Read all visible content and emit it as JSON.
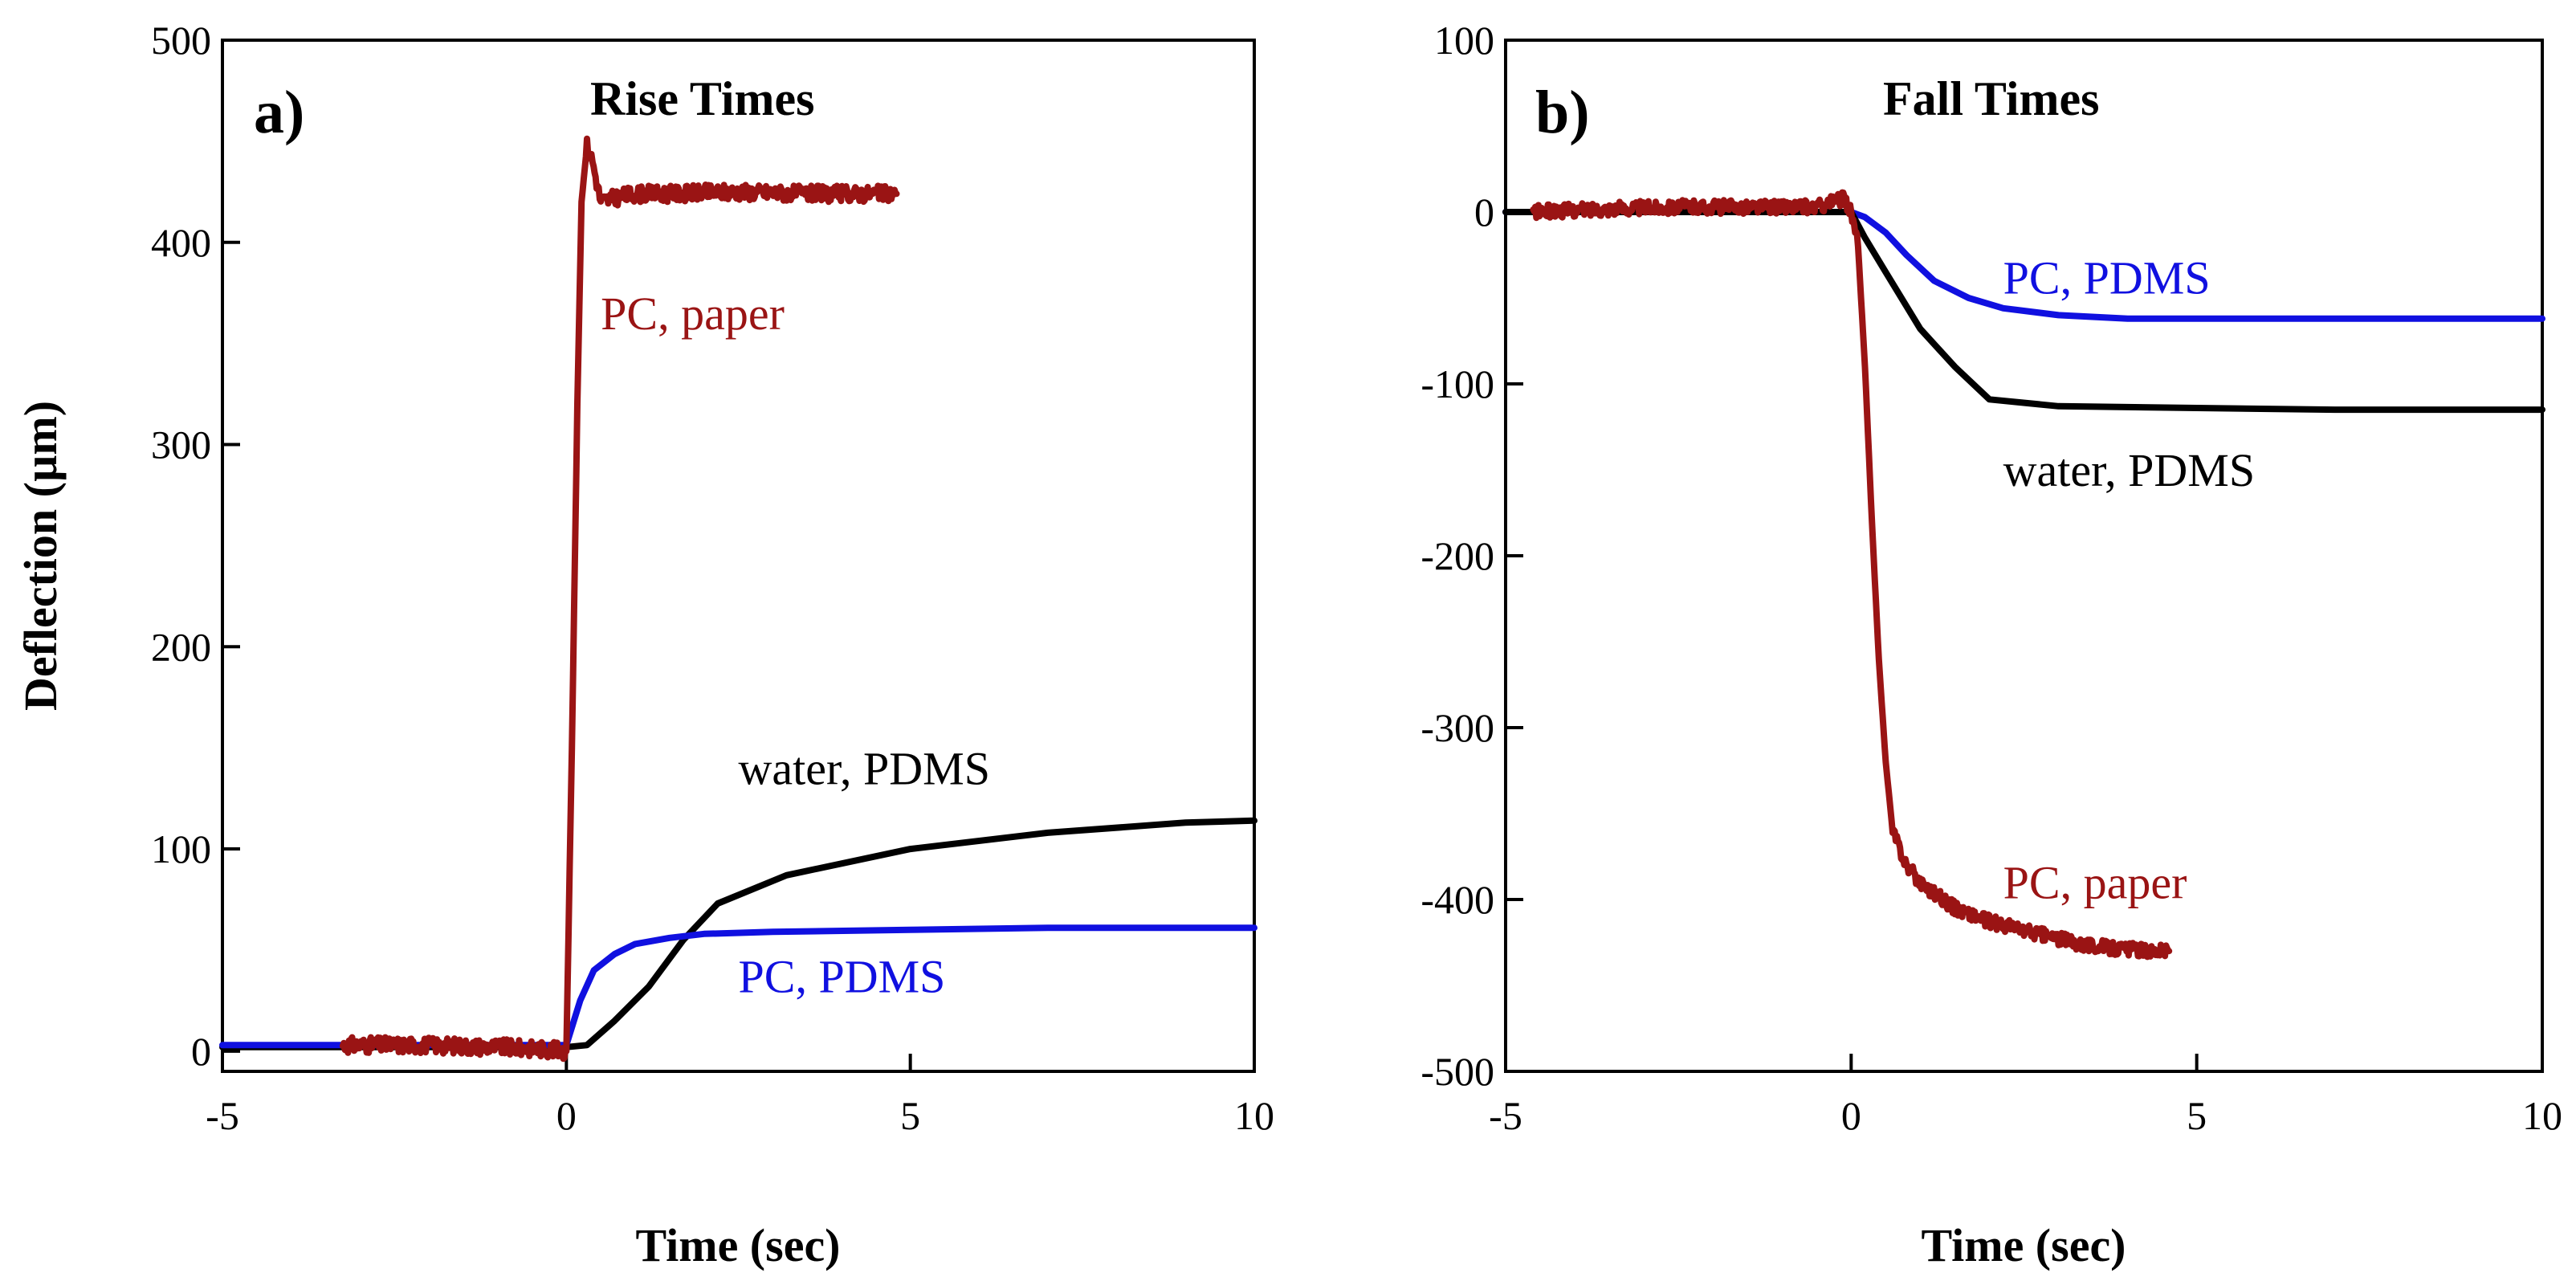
{
  "colors": {
    "black": "#000000",
    "blue": "#1010e0",
    "darkred": "#9a1414"
  },
  "chart_data": [
    {
      "type": "line",
      "panel_label": "a)",
      "title": "Rise Times",
      "xlabel": "Time (sec)",
      "ylabel": "Deflection (µm)",
      "xlim": [
        -5,
        10
      ],
      "ylim": [
        -10,
        500
      ],
      "xticks": [
        -5,
        0,
        5,
        10
      ],
      "xtick_labels": [
        "-5",
        "0",
        "5",
        "10"
      ],
      "yticks": [
        0,
        100,
        200,
        300,
        400,
        500
      ],
      "ytick_labels": [
        "0",
        "100",
        "200",
        "300",
        "400",
        "500"
      ],
      "series": [
        {
          "name": "water, PDMS",
          "color": "#000000",
          "label_anchor": [
            2.5,
            140
          ],
          "x": [
            -5,
            -3,
            -1,
            0,
            0.3,
            0.7,
            1.2,
            1.7,
            2.2,
            3.2,
            5,
            7,
            9,
            10
          ],
          "y": [
            2,
            2,
            2,
            2,
            3,
            15,
            32,
            55,
            73,
            87,
            100,
            108,
            113,
            114
          ]
        },
        {
          "name": "PC, PDMS",
          "color": "#1010e0",
          "label_anchor": [
            2.5,
            37
          ],
          "x": [
            -5,
            -3,
            -1,
            0,
            0.2,
            0.4,
            0.7,
            1.0,
            1.5,
            2.0,
            3.0,
            5,
            7,
            10
          ],
          "y": [
            3,
            3,
            3,
            3,
            25,
            40,
            48,
            53,
            56,
            58,
            59,
            60,
            61,
            61
          ],
          "noise": 0
        },
        {
          "name": "PC, paper",
          "color": "#9a1414",
          "label_anchor": [
            0.5,
            365
          ],
          "x": [
            -3.25,
            -2,
            -1,
            -0.3,
            0,
            0.08,
            0.16,
            0.22,
            0.3,
            0.38,
            0.5,
            0.7,
            1.0,
            1.5,
            2.5,
            3.5,
            4.2,
            4.8
          ],
          "y": [
            3,
            3,
            2,
            1,
            0,
            150,
            320,
            420,
            448,
            440,
            420,
            422,
            424,
            424,
            425,
            424,
            424,
            424
          ],
          "noise": 4
        }
      ]
    },
    {
      "type": "line",
      "panel_label": "b)",
      "title": "Fall Times",
      "xlabel": "Time (sec)",
      "ylabel": "",
      "xlim": [
        -5,
        10
      ],
      "ylim": [
        -500,
        100
      ],
      "xticks": [
        -5,
        0,
        5,
        10
      ],
      "xtick_labels": [
        "-5",
        "0",
        "5",
        "10"
      ],
      "yticks": [
        -500,
        -400,
        -300,
        -200,
        -100,
        0,
        100
      ],
      "ytick_labels": [
        "-500",
        "-400",
        "-300",
        "-200",
        "-100",
        "0",
        "100"
      ],
      "series": [
        {
          "name": "PC, PDMS",
          "color": "#1010e0",
          "label_anchor": [
            2.2,
            -38
          ],
          "x": [
            -5,
            -2,
            0,
            0.2,
            0.5,
            0.8,
            1.2,
            1.7,
            2.2,
            3.0,
            4,
            6,
            8,
            10
          ],
          "y": [
            0,
            0,
            0,
            -3,
            -12,
            -25,
            -40,
            -50,
            -56,
            -60,
            -62,
            -62,
            -62,
            -62
          ],
          "noise": 0
        },
        {
          "name": "water, PDMS",
          "color": "#000000",
          "label_anchor": [
            2.2,
            -150
          ],
          "x": [
            -5,
            -2,
            0,
            0.2,
            0.5,
            1.0,
            1.5,
            2.0,
            3.0,
            5,
            7,
            10
          ],
          "y": [
            0,
            0,
            0,
            -15,
            -35,
            -68,
            -90,
            -109,
            -113,
            -114,
            -115,
            -115
          ],
          "noise": 0
        },
        {
          "name": "PC, paper",
          "color": "#9a1414",
          "label_anchor": [
            2.2,
            -390
          ],
          "x": [
            -4.6,
            -3.5,
            -2.5,
            -1.5,
            -0.5,
            -0.1,
            0,
            0.1,
            0.2,
            0.3,
            0.4,
            0.5,
            0.6,
            0.8,
            1.0,
            1.5,
            2.0,
            2.5,
            3.0,
            3.5,
            4.0,
            4.6
          ],
          "y": [
            0,
            2,
            3,
            3,
            3,
            8,
            0,
            -20,
            -90,
            -180,
            -260,
            -320,
            -360,
            -380,
            -390,
            -405,
            -413,
            -418,
            -423,
            -427,
            -429,
            -430
          ],
          "noise": 4
        }
      ]
    }
  ]
}
